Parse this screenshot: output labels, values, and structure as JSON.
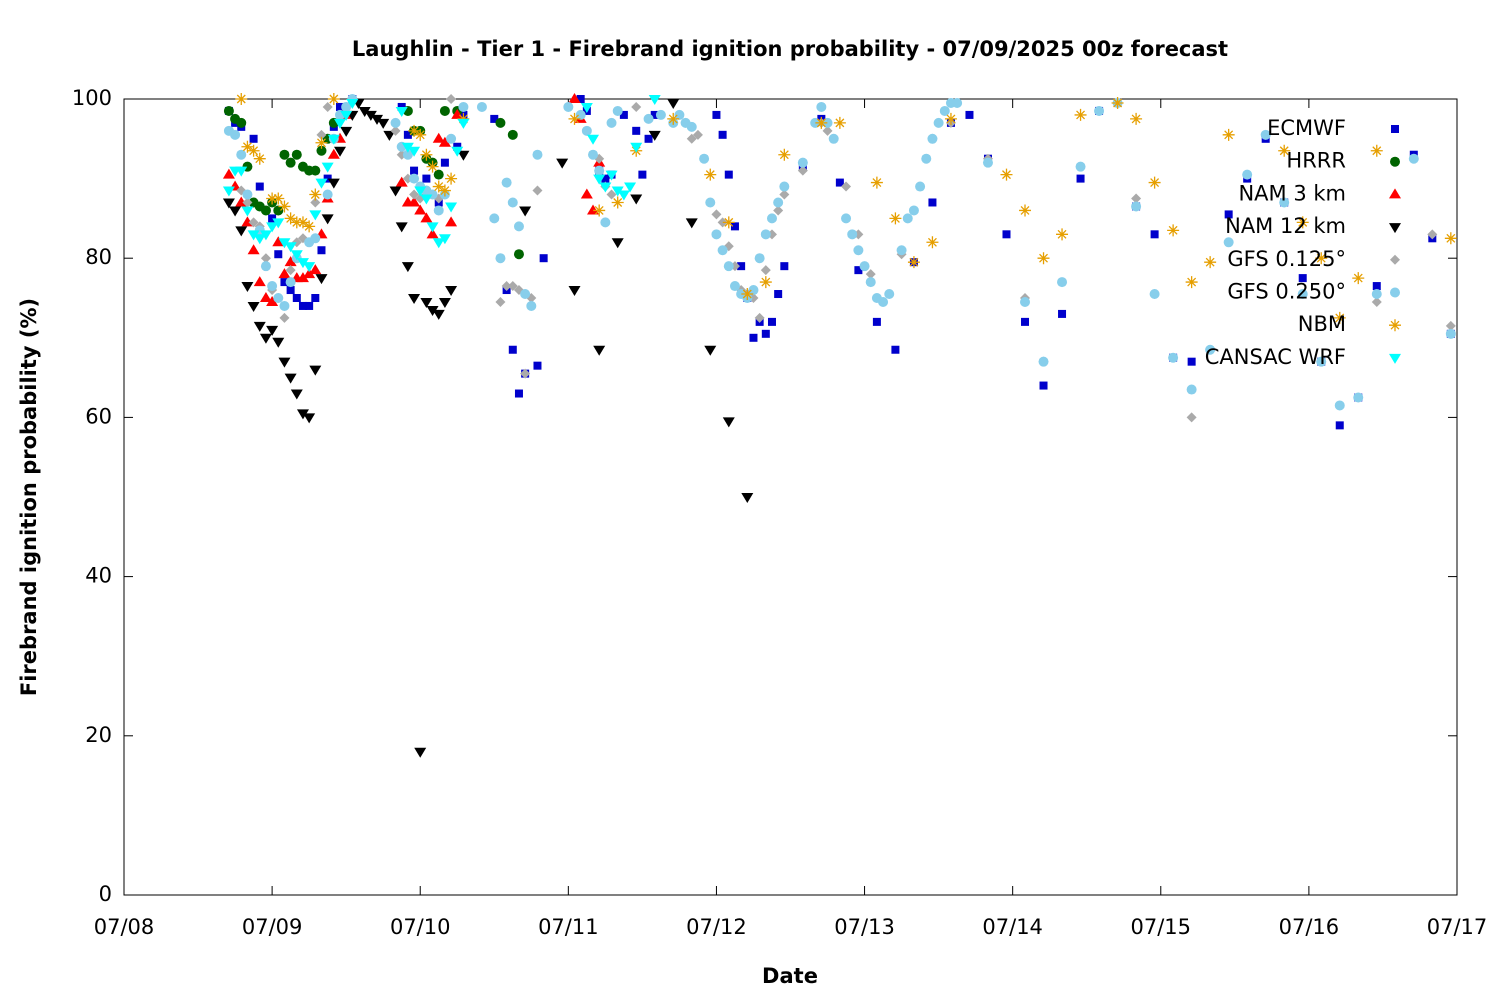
{
  "chart_data": {
    "type": "scatter",
    "title": "Laughlin - Tier 1 - Firebrand ignition probability - 07/09/2025 00z forecast",
    "xlabel": "Date",
    "ylabel": "Firebrand ignition probability (%)",
    "xlim": [
      0,
      216
    ],
    "xticks": [
      {
        "value": 0,
        "label": "07/08"
      },
      {
        "value": 24,
        "label": "07/09"
      },
      {
        "value": 48,
        "label": "07/10"
      },
      {
        "value": 72,
        "label": "07/11"
      },
      {
        "value": 96,
        "label": "07/12"
      },
      {
        "value": 120,
        "label": "07/13"
      },
      {
        "value": 144,
        "label": "07/14"
      },
      {
        "value": 168,
        "label": "07/15"
      },
      {
        "value": 192,
        "label": "07/16"
      },
      {
        "value": 216,
        "label": "07/17"
      }
    ],
    "ylim": [
      0,
      100
    ],
    "yticks": [
      0,
      20,
      40,
      60,
      80,
      100
    ],
    "legend": "upper right",
    "series": [
      {
        "name": "ECMWF",
        "color": "#0000cc",
        "marker": "square",
        "x": [
          17,
          18,
          19,
          21,
          22,
          24,
          25,
          26,
          27,
          28,
          29,
          30,
          31,
          32,
          33,
          34,
          35,
          37,
          45,
          46,
          47,
          49,
          51,
          52,
          54,
          55,
          60,
          62,
          63,
          64,
          65,
          67,
          68,
          74,
          75,
          77,
          78,
          79,
          81,
          83,
          84,
          85,
          86,
          96,
          97,
          98,
          99,
          100,
          101,
          102,
          103,
          104,
          105,
          106,
          107,
          110,
          113,
          116,
          119,
          122,
          125,
          128,
          131,
          134,
          137,
          140,
          143,
          146,
          149,
          152,
          155,
          158,
          161,
          164,
          167,
          170,
          173,
          179,
          182,
          185,
          188,
          191,
          194,
          197,
          200,
          203,
          209,
          212,
          215
        ],
        "values": [
          98.5,
          97,
          96.5,
          95,
          89,
          85,
          80.5,
          77,
          76,
          75,
          74,
          74,
          75,
          81,
          90,
          96.5,
          99,
          100,
          99,
          95.5,
          91,
          90,
          87,
          92,
          94,
          98,
          97.5,
          76,
          68.5,
          63,
          65.5,
          66.5,
          80,
          100,
          98.5,
          91,
          90,
          90.5,
          98,
          96,
          90.5,
          95,
          98,
          98,
          95.5,
          90.5,
          84,
          79,
          75,
          70,
          72,
          70.5,
          72,
          75.5,
          79,
          91.5,
          97.5,
          89.5,
          78.5,
          72,
          68.5,
          79.5,
          87,
          97,
          98,
          92.5,
          83,
          72,
          64,
          73,
          90,
          98.5,
          99.5,
          86.5,
          83,
          67.5,
          67,
          85.5,
          90,
          95,
          87,
          77.5,
          67,
          59,
          62.5,
          76.5,
          93,
          82.5,
          70.5
        ]
      },
      {
        "name": "HRRR",
        "color": "#006400",
        "marker": "circle",
        "x": [
          17,
          18,
          19,
          20,
          21,
          22,
          23,
          24,
          25,
          26,
          27,
          28,
          29,
          30,
          31,
          32,
          33,
          34,
          46,
          47,
          48,
          49,
          50,
          51,
          52,
          54,
          61,
          63,
          64
        ],
        "values": [
          98.5,
          97.5,
          97,
          91.5,
          87,
          86.5,
          86,
          87,
          86,
          93,
          92,
          93,
          91.5,
          91,
          91,
          93.5,
          95,
          97,
          98.5,
          96,
          96,
          92.5,
          92,
          90.5,
          98.5,
          98.5,
          97,
          95.5,
          80.5
        ]
      },
      {
        "name": "NAM 3 km",
        "color": "#ff0000",
        "marker": "triangle-up",
        "x": [
          17,
          18,
          19,
          20,
          21,
          22,
          23,
          24,
          25,
          26,
          27,
          28,
          29,
          30,
          31,
          32,
          33,
          34,
          35,
          36,
          45,
          46,
          47,
          48,
          49,
          50,
          51,
          52,
          53,
          54,
          73,
          74,
          75,
          76,
          77
        ],
        "values": [
          90.5,
          89,
          87,
          84.5,
          81,
          77,
          75,
          74.5,
          82,
          78,
          79.5,
          77.5,
          77.5,
          78,
          78.5,
          83,
          87.5,
          93,
          95,
          98,
          89.5,
          87,
          87,
          86,
          85,
          83,
          95,
          94.5,
          84.5,
          98,
          100,
          97.5,
          88,
          86,
          92
        ]
      },
      {
        "name": "NAM 12 km",
        "color": "#000000",
        "marker": "triangle-down",
        "x": [
          17,
          18,
          19,
          20,
          21,
          22,
          23,
          24,
          25,
          26,
          27,
          28,
          29,
          30,
          31,
          32,
          33,
          34,
          35,
          36,
          37,
          38,
          39,
          40,
          41,
          42,
          43,
          44,
          45,
          46,
          47,
          48,
          49,
          50,
          51,
          52,
          53,
          55,
          65,
          71,
          73,
          77,
          80,
          83,
          86,
          89,
          92,
          95,
          98,
          101
        ],
        "values": [
          87,
          86,
          83.5,
          76.5,
          74,
          71.5,
          70,
          71,
          69.5,
          67,
          65,
          63,
          60.5,
          60,
          66,
          77.5,
          85,
          89.5,
          93.5,
          96,
          98,
          99.5,
          98.5,
          98,
          97.5,
          97,
          95.5,
          88.5,
          84,
          79,
          75,
          18,
          74.5,
          73.5,
          73,
          74.5,
          76,
          93,
          86,
          92,
          76,
          68.5,
          82,
          87.5,
          95.5,
          99.5,
          84.5,
          68.5,
          59.5,
          50
        ]
      },
      {
        "name": "GFS 0.125°",
        "color": "#aaaaaa",
        "marker": "diamond",
        "x": [
          19,
          20,
          21,
          22,
          23,
          24,
          25,
          26,
          27,
          28,
          29,
          31,
          32,
          33,
          44,
          45,
          46,
          47,
          48,
          49,
          51,
          52,
          53,
          61,
          62,
          63,
          64,
          65,
          66,
          67,
          77,
          78,
          79,
          83,
          91,
          92,
          93,
          96,
          97,
          98,
          99,
          100,
          101,
          102,
          103,
          104,
          105,
          106,
          107,
          110,
          113,
          114,
          117,
          119,
          121,
          126,
          131,
          134,
          140,
          146,
          149,
          158,
          164,
          167,
          173,
          185,
          203,
          212,
          215
        ],
        "values": [
          88.5,
          87,
          84.5,
          84,
          80,
          76,
          75,
          72.5,
          78.5,
          82,
          82.5,
          87,
          95.5,
          99,
          96,
          93,
          90,
          88,
          87.5,
          88,
          87.5,
          88,
          100,
          74.5,
          76.5,
          76.5,
          76,
          65.5,
          75,
          88.5,
          92.5,
          89,
          88,
          99,
          97,
          95,
          95.5,
          85.5,
          84.5,
          81.5,
          79,
          76,
          75.5,
          75,
          72.5,
          78.5,
          83,
          86,
          88,
          91,
          97,
          96,
          89,
          83,
          78,
          80.5,
          95,
          97,
          92.5,
          75,
          67,
          98.5,
          87.5,
          75.5,
          60,
          95.5,
          74.5,
          83,
          71.5
        ]
      },
      {
        "name": "GFS 0.250°",
        "color": "#87ceeb",
        "marker": "circle",
        "x": [
          17,
          18,
          19,
          20,
          22,
          23,
          24,
          25,
          26,
          27,
          28,
          30,
          31,
          33,
          34,
          35,
          36,
          37,
          44,
          45,
          46,
          47,
          48,
          49,
          50,
          51,
          52,
          53,
          55,
          58,
          60,
          61,
          62,
          63,
          64,
          65,
          66,
          67,
          72,
          74,
          75,
          76,
          77,
          78,
          79,
          80,
          85,
          87,
          89,
          90,
          91,
          92,
          94,
          95,
          96,
          97,
          98,
          99,
          100,
          101,
          102,
          103,
          104,
          105,
          106,
          107,
          110,
          112,
          113,
          114,
          115,
          117,
          118,
          119,
          120,
          121,
          122,
          123,
          124,
          126,
          127,
          128,
          129,
          130,
          131,
          132,
          133,
          134,
          135,
          140,
          146,
          149,
          152,
          155,
          158,
          161,
          164,
          167,
          170,
          173,
          176,
          179,
          182,
          185,
          188,
          191,
          194,
          197,
          200,
          203,
          209,
          215
        ],
        "values": [
          96,
          95.5,
          93,
          88,
          83.5,
          79,
          76.5,
          75,
          74,
          77,
          80,
          82,
          82.5,
          88,
          95,
          98,
          99,
          100,
          97,
          94,
          93,
          90,
          89,
          88.5,
          88,
          86,
          88,
          95,
          99,
          99,
          85,
          80,
          89.5,
          87,
          84,
          75.5,
          74,
          93,
          99,
          98,
          96,
          93,
          91,
          84.5,
          97,
          98.5,
          97.5,
          98,
          97,
          98,
          97,
          96.5,
          92.5,
          87,
          83,
          81,
          79,
          76.5,
          75.5,
          75,
          76,
          80,
          83,
          85,
          87,
          89,
          92,
          97,
          99,
          97,
          95,
          85,
          83,
          81,
          79,
          77,
          75,
          74.5,
          75.5,
          81,
          85,
          86,
          89,
          92.5,
          95,
          97,
          98.5,
          99.5,
          99.5,
          92,
          74.5,
          67,
          77,
          91.5,
          98.5,
          99.5,
          86.5,
          75.5,
          67.5,
          63.5,
          68.5,
          82,
          90.5,
          95.5,
          87,
          75.5,
          67,
          61.5,
          62.5,
          75.5,
          92.5,
          70.5
        ]
      },
      {
        "name": "NBM",
        "color": "#e69f00",
        "marker": "asterisk",
        "x": [
          19,
          20,
          21,
          22,
          24,
          25,
          26,
          27,
          28,
          29,
          30,
          31,
          32,
          34,
          47,
          48,
          49,
          50,
          51,
          52,
          53,
          55,
          73,
          77,
          80,
          83,
          89,
          95,
          98,
          101,
          104,
          107,
          113,
          116,
          122,
          125,
          128,
          131,
          134,
          143,
          146,
          149,
          152,
          155,
          161,
          164,
          167,
          170,
          173,
          176,
          179,
          188,
          191,
          194,
          197,
          200,
          203,
          215
        ],
        "values": [
          100,
          94,
          93.5,
          92.5,
          87.5,
          87.5,
          86.5,
          85,
          84.5,
          84.5,
          84,
          88,
          94.5,
          100,
          96,
          95.5,
          93,
          91.5,
          89,
          88.5,
          90,
          97.5,
          97.5,
          86,
          87,
          93.5,
          97.5,
          90.5,
          84.5,
          75.5,
          77,
          93,
          97,
          97,
          89.5,
          85,
          79.5,
          82,
          97.5,
          90.5,
          86,
          80,
          83,
          98,
          99.5,
          97.5,
          89.5,
          83.5,
          77,
          79.5,
          95.5,
          93.5,
          84.5,
          80,
          72.5,
          77.5,
          93.5,
          82.5
        ]
      },
      {
        "name": "CANSAC WRF",
        "color": "#00ffff",
        "marker": "triangle-down",
        "x": [
          17,
          18,
          19,
          20,
          21,
          22,
          23,
          24,
          25,
          26,
          27,
          28,
          29,
          30,
          31,
          32,
          33,
          34,
          35,
          36,
          37,
          45,
          46,
          47,
          48,
          49,
          50,
          51,
          52,
          53,
          54,
          55,
          75,
          76,
          77,
          78,
          79,
          80,
          81,
          82,
          83,
          86
        ],
        "values": [
          88.5,
          91,
          91,
          86,
          83,
          82.5,
          83,
          84,
          84.5,
          82,
          81.5,
          80.5,
          79.5,
          79,
          85.5,
          89.5,
          91.5,
          95,
          97,
          98,
          99.5,
          98.5,
          94,
          93.5,
          88.5,
          87.5,
          84,
          82,
          82.5,
          86.5,
          93.5,
          97,
          99,
          95,
          90,
          89,
          90.5,
          88.5,
          88,
          89,
          94,
          100
        ]
      }
    ]
  }
}
